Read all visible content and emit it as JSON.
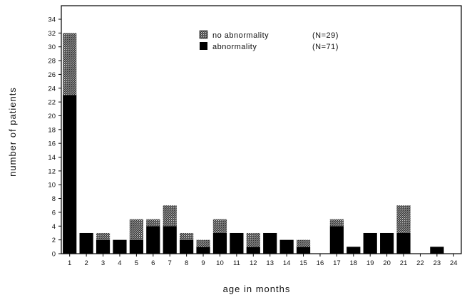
{
  "chart_data": {
    "type": "bar",
    "stacked": true,
    "xlabel": "age in months",
    "ylabel": "number of patients",
    "ylim": [
      0,
      34
    ],
    "yticks": [
      0,
      2,
      4,
      6,
      8,
      10,
      12,
      14,
      16,
      18,
      20,
      22,
      24,
      26,
      28,
      30,
      32,
      34
    ],
    "categories": [
      "1",
      "2",
      "3",
      "4",
      "5",
      "6",
      "7",
      "8",
      "9",
      "10",
      "11",
      "12",
      "13",
      "14",
      "15",
      "16",
      "17",
      "18",
      "19",
      "20",
      "21",
      "22",
      "23",
      "24"
    ],
    "series": [
      {
        "name": "abnormality",
        "legend_text": "abnormality",
        "legend_n": "(N=71)",
        "color": "#000000",
        "values": [
          23,
          3,
          2,
          2,
          2,
          4,
          4,
          2,
          1,
          3,
          3,
          1,
          3,
          2,
          1,
          0,
          4,
          1,
          3,
          3,
          3,
          0,
          1,
          0
        ]
      },
      {
        "name": "no abnormality",
        "legend_text": "no abnormality",
        "legend_n": "(N=29)",
        "color": "#666666",
        "pattern": "hatched",
        "values": [
          9,
          0,
          1,
          0,
          3,
          1,
          3,
          1,
          1,
          2,
          0,
          2,
          0,
          0,
          1,
          0,
          1,
          0,
          0,
          0,
          4,
          0,
          0,
          0
        ]
      }
    ],
    "legend_position": "top-center",
    "grid": false
  }
}
